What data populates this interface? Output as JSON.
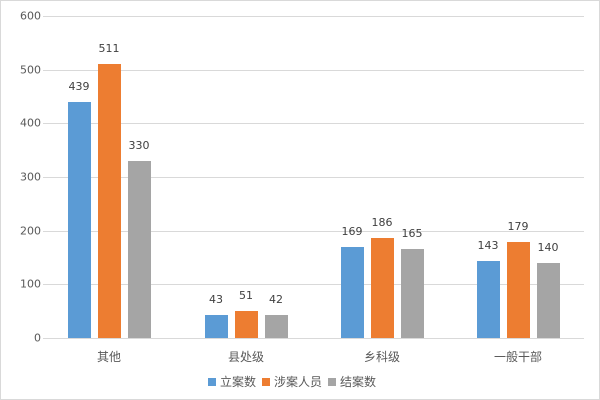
{
  "chart_data": {
    "type": "bar",
    "title": "",
    "xlabel": "",
    "ylabel": "",
    "ylim": [
      0,
      600
    ],
    "yticks": [
      0,
      100,
      200,
      300,
      400,
      500,
      600
    ],
    "grid": true,
    "legend_position": "bottom",
    "categories": [
      "其他",
      "县处级",
      "乡科级",
      "一般干部"
    ],
    "series": [
      {
        "name": "立案数",
        "color": "#5b9bd5",
        "values": [
          439,
          43,
          169,
          143
        ]
      },
      {
        "name": "涉案人员",
        "color": "#ed7d31",
        "values": [
          511,
          51,
          186,
          179
        ]
      },
      {
        "name": "结案数",
        "color": "#a5a5a5",
        "values": [
          330,
          42,
          165,
          140
        ]
      }
    ]
  },
  "yaxis": {
    "ticks": [
      "0",
      "100",
      "200",
      "300",
      "400",
      "500",
      "600"
    ]
  },
  "xaxis": {
    "labels": [
      "其他",
      "县处级",
      "乡科级",
      "一般干部"
    ]
  },
  "legend": {
    "items": [
      "立案数",
      "涉案人员",
      "结案数"
    ]
  },
  "labels": {
    "s0": [
      "439",
      "43",
      "169",
      "143"
    ],
    "s1": [
      "511",
      "51",
      "186",
      "179"
    ],
    "s2": [
      "330",
      "42",
      "165",
      "140"
    ]
  }
}
